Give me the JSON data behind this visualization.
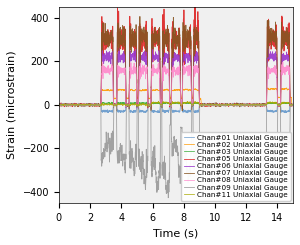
{
  "title": "",
  "xlabel": "Time (s)",
  "ylabel": "Strain (microstrain)",
  "xlim": [
    0,
    15
  ],
  "ylim": [
    -450,
    450
  ],
  "xticks": [
    0,
    2,
    4,
    6,
    8,
    10,
    12,
    14
  ],
  "yticks": [
    -400,
    -200,
    0,
    200,
    400
  ],
  "legend_entries": [
    "Chan#01 Uniaxial Gauge",
    "Chan#02 Uniaxial Gauge",
    "Chan#03 Uniaxial Gauge",
    "Chan#05 Uniaxial Gauge",
    "Chan#06 Uniaxial Gauge",
    "Chan#07 Uniaxial Gauge",
    "Chan#08 Uniaxial Gauge",
    "Chan#09 Uniaxial Gauge",
    "Chan#11 Uniaxial Gauge"
  ],
  "line_colors": [
    "#6699cc",
    "#ff9900",
    "#33aa33",
    "#dd2222",
    "#9933cc",
    "#885522",
    "#ff88cc",
    "#999999",
    "#aaaa00"
  ],
  "background_color": "#f0f0f0",
  "legend_fontsize": 5.2,
  "axis_fontsize": 8,
  "tick_fontsize": 7
}
